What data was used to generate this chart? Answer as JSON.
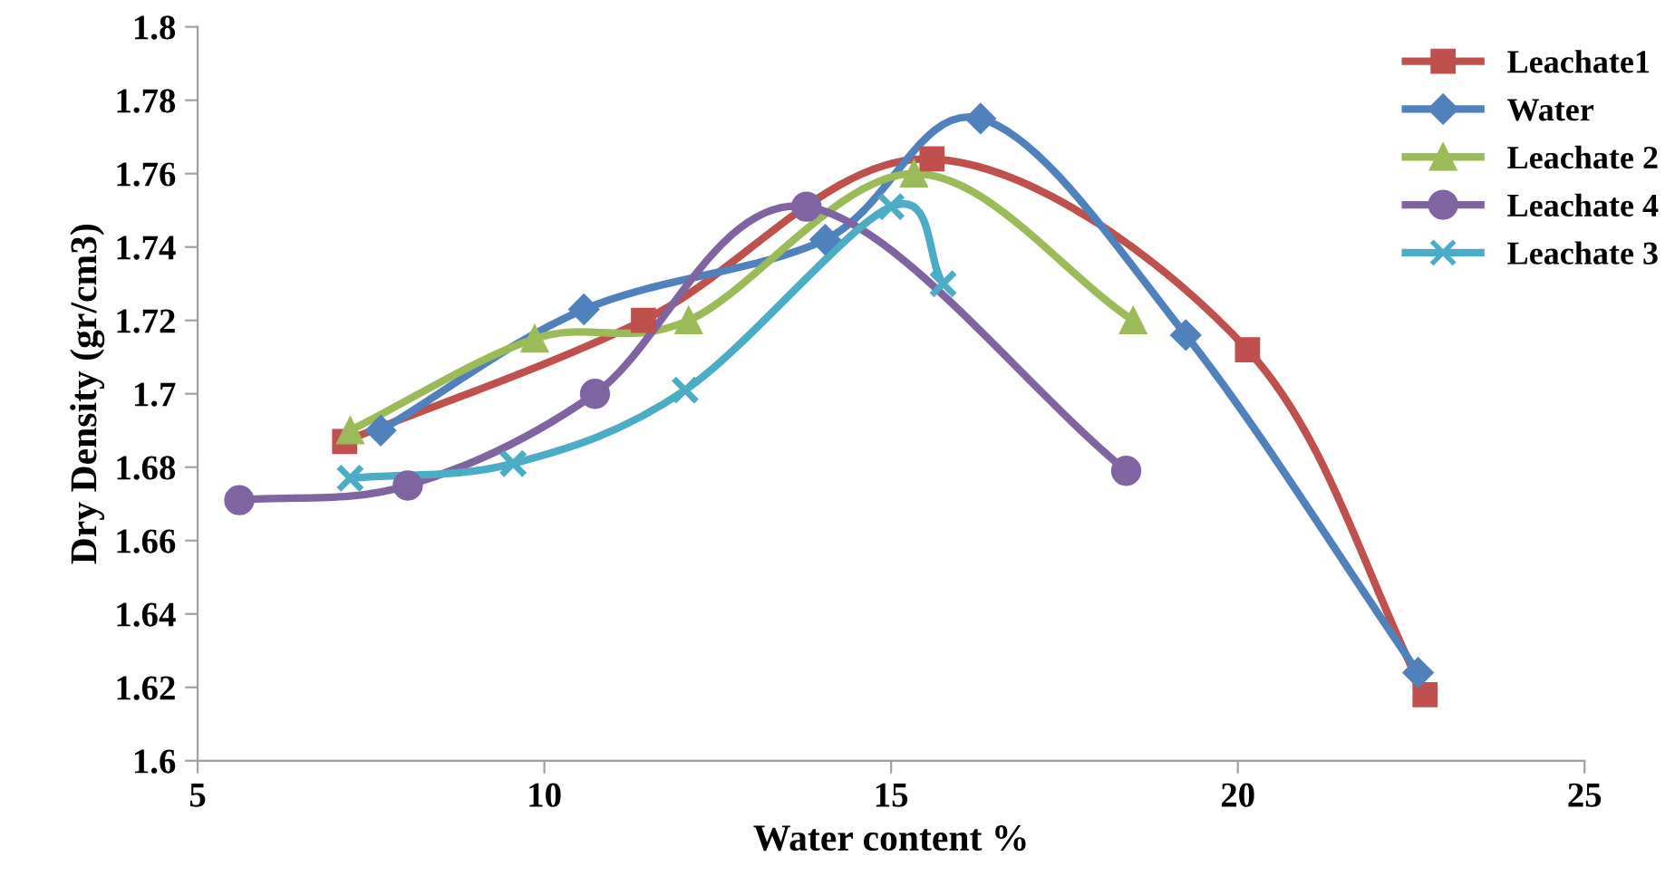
{
  "chart_data": {
    "type": "line",
    "xlabel": "Water content %",
    "ylabel": "Dry Density (gr/cm3)",
    "xlim": [
      5,
      25
    ],
    "xticks": [
      5,
      10,
      15,
      20,
      25
    ],
    "ylim": [
      1.6,
      1.8
    ],
    "yticks": [
      1.6,
      1.62,
      1.64,
      1.66,
      1.68,
      1.7,
      1.72,
      1.74,
      1.76,
      1.78,
      1.8
    ],
    "grid": false,
    "legend": "right",
    "series": [
      {
        "name": "Leachate1",
        "color": "#c0504d",
        "marker": "square",
        "x": [
          7.12,
          11.43,
          15.59,
          20.14,
          22.7
        ],
        "values": [
          1.687,
          1.72,
          1.764,
          1.712,
          1.618
        ]
      },
      {
        "name": "Water",
        "color": "#4f81bd",
        "marker": "diamond",
        "x": [
          7.64,
          10.57,
          14.05,
          16.29,
          19.25,
          22.6
        ],
        "values": [
          1.69,
          1.723,
          1.742,
          1.775,
          1.716,
          1.624
        ]
      },
      {
        "name": "Leachate 2",
        "color": "#9bbb59",
        "marker": "triangle",
        "x": [
          7.2,
          9.86,
          12.08,
          15.33,
          18.49
        ],
        "values": [
          1.69,
          1.715,
          1.72,
          1.76,
          1.72
        ]
      },
      {
        "name": "Leachate 4",
        "color": "#8064a2",
        "marker": "circle",
        "x": [
          5.6,
          8.03,
          10.73,
          13.78,
          18.39
        ],
        "values": [
          1.671,
          1.675,
          1.7,
          1.751,
          1.679
        ]
      },
      {
        "name": "Leachate 3",
        "color": "#4bacc6",
        "marker": "cross",
        "x": [
          7.2,
          9.55,
          12.03,
          15.0,
          15.75
        ],
        "values": [
          1.677,
          1.681,
          1.701,
          1.751,
          1.73
        ]
      }
    ]
  }
}
